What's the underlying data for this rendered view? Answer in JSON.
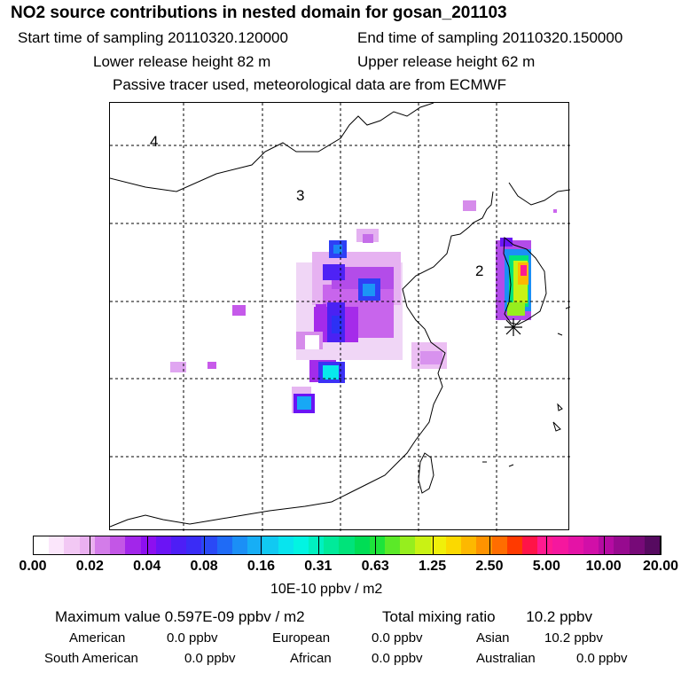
{
  "header": {
    "title": "NO2 source contributions in nested domain for gosan_201103",
    "start": "Start time of sampling 20110320.120000",
    "end": "End time of sampling 20110320.150000",
    "lower": "Lower release height   82 m",
    "upper": "Upper release height   62 m",
    "note": "Passive tracer used, meteorological data are from ECMWF"
  },
  "map": {
    "regions": [
      "4",
      "3",
      "2"
    ],
    "marker": "gosan-station-star"
  },
  "colorbar": {
    "ticks": [
      "0.00",
      "0.02",
      "0.04",
      "0.08",
      "0.16",
      "0.31",
      "0.63",
      "1.25",
      "2.50",
      "5.00",
      "10.00",
      "20.00"
    ],
    "units": "10E-10 ppbv / m2",
    "colors": [
      "#ffffff",
      "#fbe6fb",
      "#f2c8f4",
      "#eab0f0",
      "#d37ce9",
      "#c356e6",
      "#a226ea",
      "#8d0ff0",
      "#6b14f5",
      "#4d1ef6",
      "#3a2cf6",
      "#2a49f6",
      "#1f6bf6",
      "#1b8ff6",
      "#17aef5",
      "#11c9f2",
      "#08e4ee",
      "#02f4e2",
      "#00f0c0",
      "#00ea9a",
      "#00e37a",
      "#00dd55",
      "#1de43a",
      "#5be928",
      "#96ee1e",
      "#c9f214",
      "#f0f00a",
      "#fbd900",
      "#fdb800",
      "#fe9300",
      "#ff6d00",
      "#ff3a00",
      "#ff1448",
      "#ff1a90",
      "#f5179e",
      "#e413a6",
      "#d10fa8",
      "#b50ba2",
      "#970a8f",
      "#770a78",
      "#560a60"
    ]
  },
  "stats": {
    "max_label": "Maximum value  0.597E-09 ppbv / m2",
    "total_label": "Total mixing ratio",
    "total_value": "10.2 ppbv",
    "rows": [
      [
        {
          "k": "American",
          "v": "0.0 ppbv"
        },
        {
          "k": "European",
          "v": "0.0 ppbv"
        },
        {
          "k": "Asian",
          "v": "10.2 ppbv"
        }
      ],
      [
        {
          "k": "South American",
          "v": "0.0 ppbv"
        },
        {
          "k": "African",
          "v": "0.0 ppbv"
        },
        {
          "k": "Australian",
          "v": "0.0 ppbv"
        }
      ]
    ]
  }
}
